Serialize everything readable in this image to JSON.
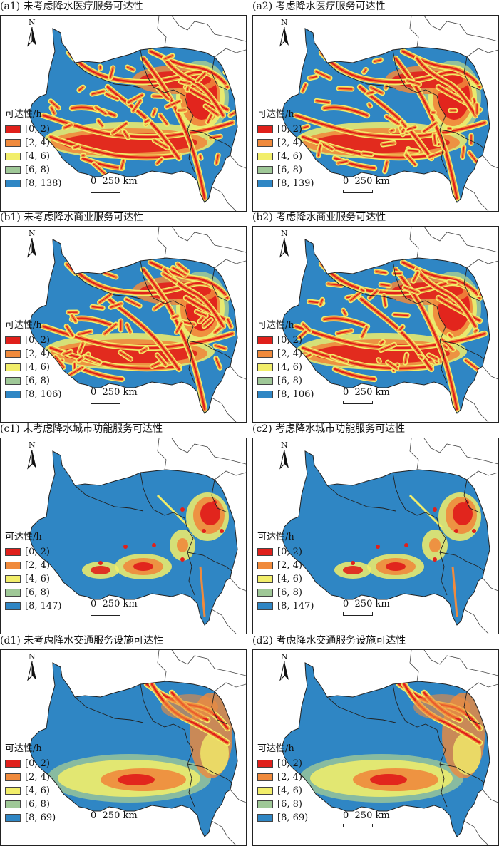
{
  "panels": [
    {
      "title": "(a1) 未考虑降水医疗服务可达性",
      "legend_title": "可达性/h",
      "legend_labels": [
        "[0, 2)",
        "[2, 4)",
        "[4, 6)",
        "[6, 8)",
        "[8, 138)"
      ],
      "scale_label": "0  250 km",
      "north_label": "N",
      "pattern": "dense"
    },
    {
      "title": "(a2) 考虑降水医疗服务可达性",
      "legend_title": "可达性/h",
      "legend_labels": [
        "[0, 2)",
        "[2, 4)",
        "[4, 6)",
        "[6, 8)",
        "[8, 139)"
      ],
      "scale_label": "0  250 km",
      "north_label": "N",
      "pattern": "dense"
    },
    {
      "title": "(b1) 未考虑降水商业服务可达性",
      "legend_title": "可达性/h",
      "legend_labels": [
        "[0, 2)",
        "[2, 4)",
        "[4, 6)",
        "[6, 8)",
        "[8, 106)"
      ],
      "scale_label": "0  250 km",
      "north_label": "N",
      "pattern": "dense"
    },
    {
      "title": "(b2) 考虑降水商业服务可达性",
      "legend_title": "可达性/h",
      "legend_labels": [
        "[0, 2)",
        "[2, 4)",
        "[4, 6)",
        "[6, 8)",
        "[8, 106)"
      ],
      "scale_label": "0  250 km",
      "north_label": "N",
      "pattern": "dense"
    },
    {
      "title": "(c1) 未考虑降水城市功能服务可达性",
      "legend_title": "可达性/h",
      "legend_labels": [
        "[0, 2)",
        "[2, 4)",
        "[4, 6)",
        "[6, 8)",
        "[8, 147)"
      ],
      "scale_label": "0  250 km",
      "north_label": "N",
      "pattern": "sparse"
    },
    {
      "title": "(c2) 考虑降水城市功能服务可达性",
      "legend_title": "可达性/h",
      "legend_labels": [
        "[0, 2)",
        "[2, 4)",
        "[4, 6)",
        "[6, 8)",
        "[8, 147)"
      ],
      "scale_label": "0  250 km",
      "north_label": "N",
      "pattern": "sparse"
    },
    {
      "title": "(d1) 未考虑降水交通服务设施可达性",
      "legend_title": "可达性/h",
      "legend_labels": [
        "[0, 2)",
        "[2, 4)",
        "[4, 6)",
        "[6, 8)",
        "[8, 69)"
      ],
      "scale_label": "0  250 km",
      "north_label": "N",
      "pattern": "transport"
    },
    {
      "title": "(d2) 考虑降水交通服务设施可达性",
      "legend_title": "可达性/h",
      "legend_labels": [
        "[0, 2)",
        "[2, 4)",
        "[4, 6)",
        "[6, 8)",
        "[8, 69)"
      ],
      "scale_label": "0  250 km",
      "north_label": "N",
      "pattern": "transport"
    }
  ],
  "class_colors": [
    "#e0201b",
    "#f08a3c",
    "#f2ee6a",
    "#9fc897",
    "#2f86c4"
  ]
}
